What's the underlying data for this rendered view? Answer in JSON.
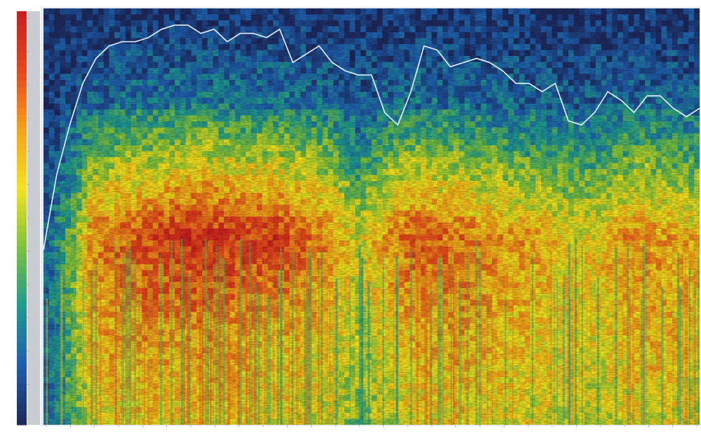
{
  "chart_data": {
    "type": "heatmap",
    "title": "",
    "xlabel": "",
    "ylabel": "",
    "colormap": [
      "#1e2a5e",
      "#1f5fb0",
      "#1f9c8f",
      "#7cc23c",
      "#f2e31c",
      "#f5a41a",
      "#e8491c",
      "#cc1f1f"
    ],
    "colorbar": {
      "orientation": "vertical",
      "placement": "left",
      "tick_labels": [
        "",
        "",
        "",
        "",
        "",
        "",
        "",
        "",
        "",
        "",
        "",
        "",
        ""
      ]
    },
    "x_tick_labels": [
      "",
      "",
      "",
      "",
      "",
      "",
      "",
      "",
      "",
      "",
      "",
      "",
      "",
      "",
      "",
      "",
      "",
      "",
      "",
      "",
      "",
      "",
      "",
      "",
      "",
      "",
      "",
      ""
    ],
    "xlim": [
      0,
      1
    ],
    "ylim": [
      0,
      1
    ],
    "intensity_profile": {
      "x": [
        0.0,
        0.04,
        0.08,
        0.12,
        0.16,
        0.2,
        0.24,
        0.28,
        0.32,
        0.36,
        0.4,
        0.44,
        0.48,
        0.52,
        0.56,
        0.6,
        0.64,
        0.68,
        0.72,
        0.76,
        0.8,
        0.84,
        0.88,
        0.92,
        0.96,
        1.0
      ],
      "low_band": [
        0.45,
        0.55,
        0.65,
        0.7,
        0.72,
        0.7,
        0.72,
        0.7,
        0.68,
        0.66,
        0.64,
        0.6,
        0.5,
        0.58,
        0.66,
        0.68,
        0.7,
        0.66,
        0.64,
        0.62,
        0.6,
        0.58,
        0.62,
        0.66,
        0.64,
        0.6
      ],
      "mid_band": [
        0.4,
        0.55,
        0.75,
        0.82,
        0.85,
        0.92,
        0.95,
        0.9,
        0.88,
        0.9,
        0.8,
        0.72,
        0.55,
        0.7,
        0.82,
        0.8,
        0.78,
        0.72,
        0.7,
        0.66,
        0.62,
        0.6,
        0.7,
        0.72,
        0.68,
        0.65
      ],
      "high_band": [
        0.25,
        0.35,
        0.45,
        0.5,
        0.52,
        0.55,
        0.58,
        0.55,
        0.52,
        0.54,
        0.5,
        0.46,
        0.3,
        0.42,
        0.5,
        0.48,
        0.46,
        0.42,
        0.4,
        0.38,
        0.36,
        0.34,
        0.4,
        0.42,
        0.4,
        0.38
      ]
    },
    "series": [
      {
        "color": "#e6f3ff",
        "x": [
          0.0,
          0.02,
          0.04,
          0.06,
          0.08,
          0.1,
          0.12,
          0.14,
          0.16,
          0.18,
          0.2,
          0.22,
          0.24,
          0.26,
          0.28,
          0.3,
          0.32,
          0.34,
          0.36,
          0.38,
          0.4,
          0.42,
          0.44,
          0.46,
          0.48,
          0.5,
          0.52,
          0.54,
          0.56,
          0.58,
          0.6,
          0.62,
          0.64,
          0.66,
          0.68,
          0.7,
          0.72,
          0.74,
          0.76,
          0.78,
          0.8,
          0.82,
          0.84,
          0.86,
          0.88,
          0.9,
          0.92,
          0.94,
          0.96,
          0.98,
          1.0
        ],
        "y": [
          0.42,
          0.6,
          0.72,
          0.82,
          0.88,
          0.91,
          0.92,
          0.92,
          0.93,
          0.95,
          0.96,
          0.96,
          0.94,
          0.95,
          0.92,
          0.94,
          0.94,
          0.93,
          0.95,
          0.87,
          0.89,
          0.91,
          0.87,
          0.85,
          0.84,
          0.84,
          0.75,
          0.72,
          0.8,
          0.91,
          0.9,
          0.86,
          0.87,
          0.88,
          0.87,
          0.85,
          0.82,
          0.82,
          0.8,
          0.82,
          0.73,
          0.72,
          0.75,
          0.8,
          0.78,
          0.75,
          0.79,
          0.79,
          0.76,
          0.74,
          0.76
        ]
      }
    ]
  }
}
